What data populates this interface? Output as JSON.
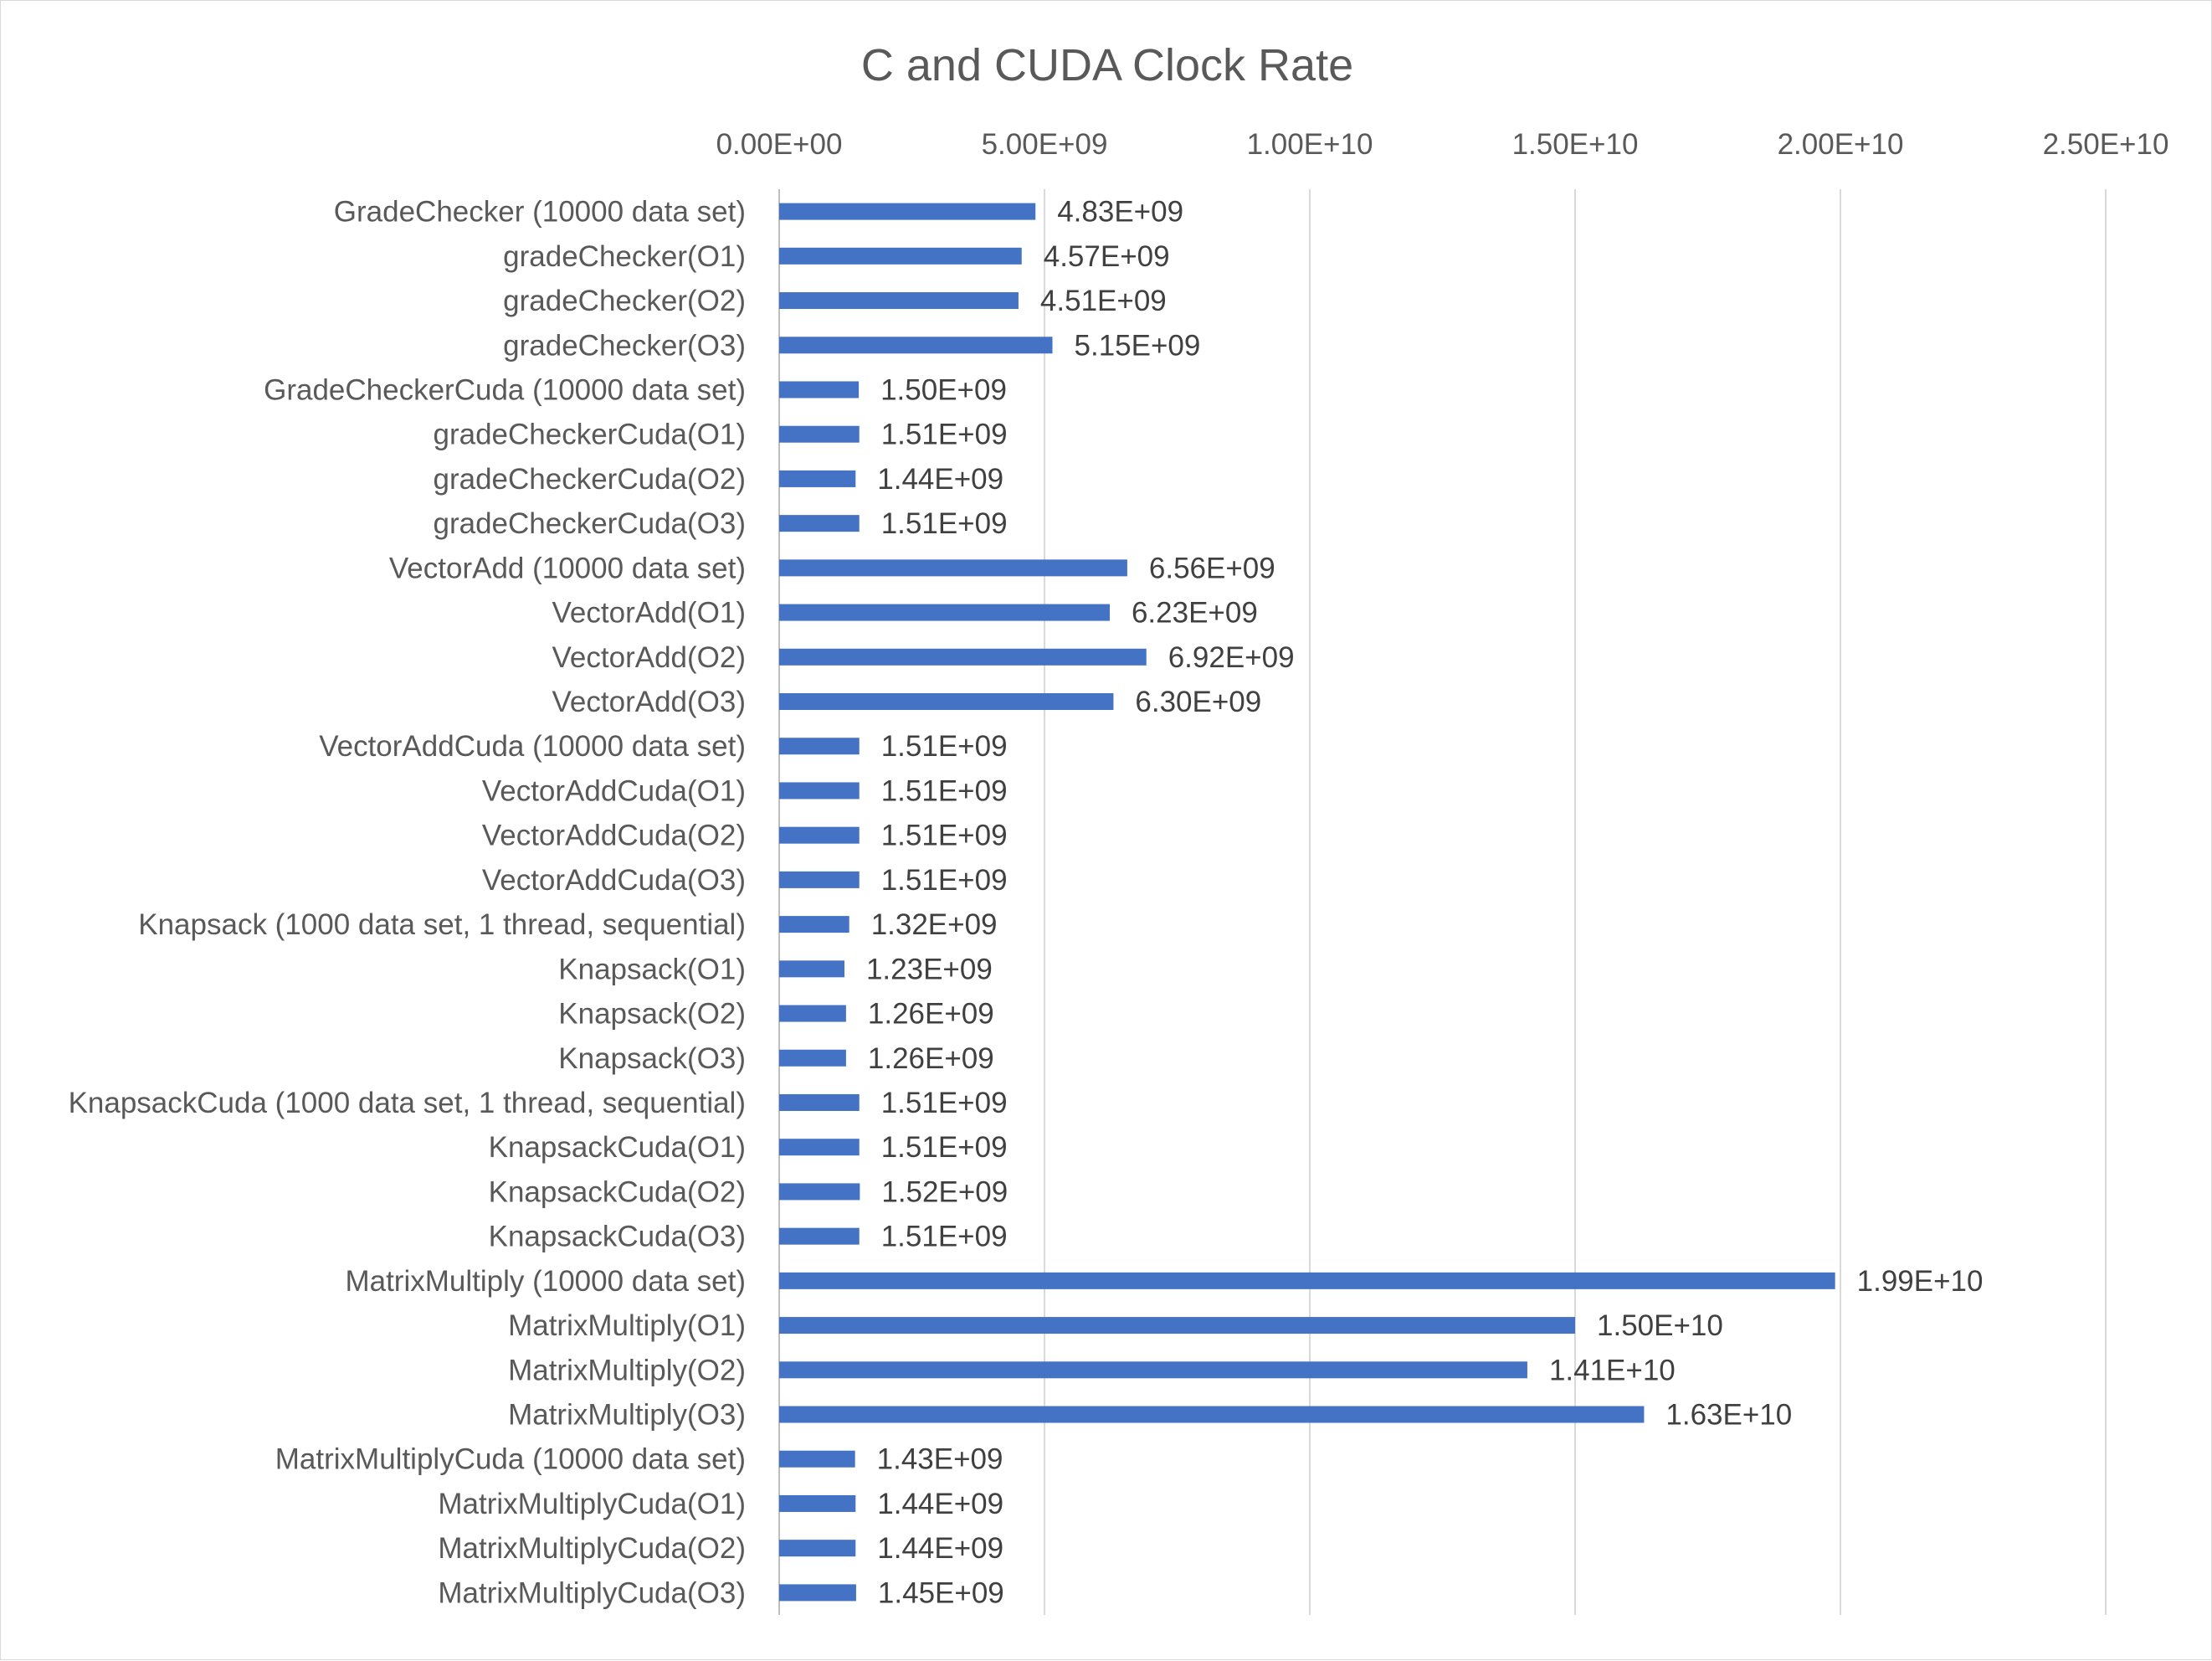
{
  "chart_data": {
    "type": "bar",
    "orientation": "horizontal",
    "title": "C and CUDA Clock Rate",
    "xlabel": "",
    "ylabel": "",
    "xlim": [
      0,
      25000000000
    ],
    "x_ticks": [
      0,
      5000000000,
      10000000000,
      15000000000,
      20000000000,
      25000000000
    ],
    "x_tick_labels": [
      "0.00E+00",
      "5.00E+09",
      "1.00E+10",
      "1.50E+10",
      "2.00E+10",
      "2.50E+10"
    ],
    "x_axis_position": "top",
    "grid": true,
    "legend": "none",
    "bar_color": "#4472C4",
    "categories": [
      "GradeChecker (10000 data set)",
      "gradeChecker(O1)",
      "gradeChecker(O2)",
      "gradeChecker(O3)",
      "GradeCheckerCuda (10000 data set)",
      "gradeCheckerCuda(O1)",
      "gradeCheckerCuda(O2)",
      "gradeCheckerCuda(O3)",
      "VectorAdd (10000 data set)",
      "VectorAdd(O1)",
      "VectorAdd(O2)",
      "VectorAdd(O3)",
      "VectorAddCuda (10000 data set)",
      "VectorAddCuda(O1)",
      "VectorAddCuda(O2)",
      "VectorAddCuda(O3)",
      "Knapsack (1000 data set, 1 thread, sequential)",
      "Knapsack(O1)",
      "Knapsack(O2)",
      "Knapsack(O3)",
      "KnapsackCuda (1000 data set, 1 thread, sequential)",
      "KnapsackCuda(O1)",
      "KnapsackCuda(O2)",
      "KnapsackCuda(O3)",
      "MatrixMultiply (10000 data set)",
      "MatrixMultiply(O1)",
      "MatrixMultiply(O2)",
      "MatrixMultiply(O3)",
      "MatrixMultiplyCuda (10000 data set)",
      "MatrixMultiplyCuda(O1)",
      "MatrixMultiplyCuda(O2)",
      "MatrixMultiplyCuda(O3)"
    ],
    "values": [
      4830000000,
      4570000000,
      4510000000,
      5150000000,
      1500000000,
      1510000000,
      1440000000,
      1510000000,
      6560000000,
      6230000000,
      6920000000,
      6300000000,
      1510000000,
      1510000000,
      1510000000,
      1510000000,
      1320000000,
      1230000000,
      1260000000,
      1260000000,
      1510000000,
      1510000000,
      1520000000,
      1510000000,
      19900000000,
      15000000000,
      14100000000,
      16300000000,
      1430000000,
      1440000000,
      1440000000,
      1450000000
    ],
    "data_labels": [
      "4.83E+09",
      "4.57E+09",
      "4.51E+09",
      "5.15E+09",
      "1.50E+09",
      "1.51E+09",
      "1.44E+09",
      "1.51E+09",
      "6.56E+09",
      "6.23E+09",
      "6.92E+09",
      "6.30E+09",
      "1.51E+09",
      "1.51E+09",
      "1.51E+09",
      "1.51E+09",
      "1.32E+09",
      "1.23E+09",
      "1.26E+09",
      "1.26E+09",
      "1.51E+09",
      "1.51E+09",
      "1.52E+09",
      "1.51E+09",
      "1.99E+10",
      "1.50E+10",
      "1.41E+10",
      "1.63E+10",
      "1.43E+09",
      "1.44E+09",
      "1.44E+09",
      "1.45E+09"
    ]
  }
}
